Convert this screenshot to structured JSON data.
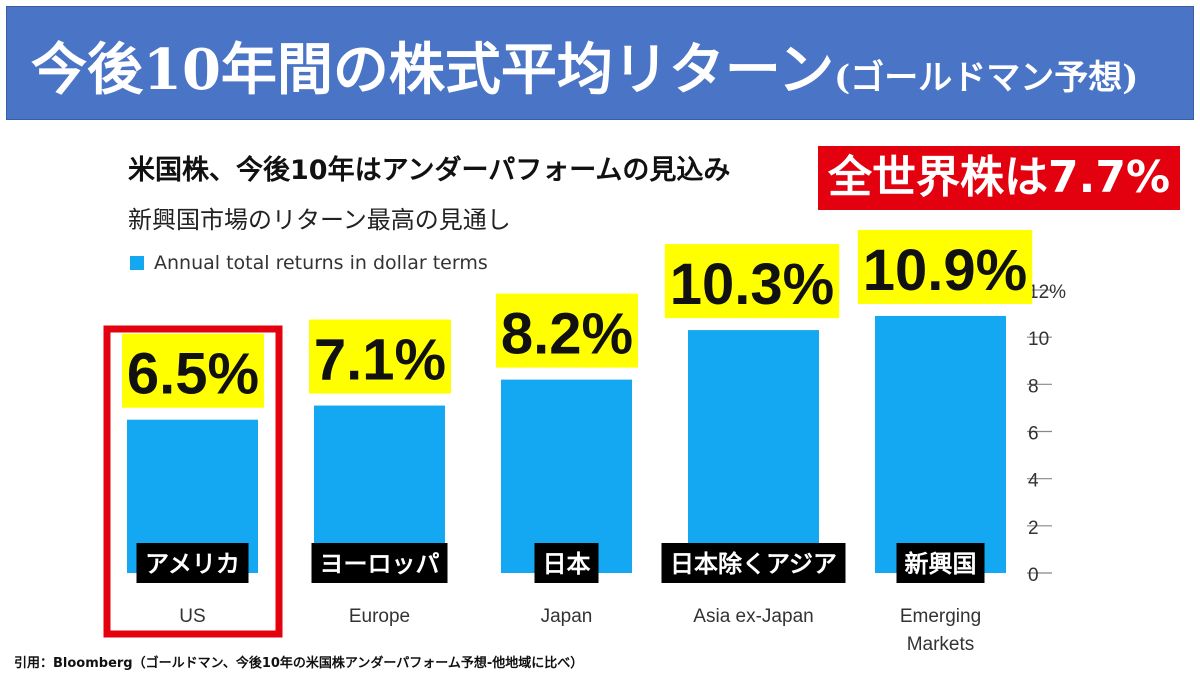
{
  "banner": {
    "title_main": "今後10年間の株式平均リターン",
    "title_sub": "(ゴールドマン予想)"
  },
  "chart_title": "米国株、今後10年はアンダーパフォームの見込み",
  "chart_subtitle": "新興国市場のリターン最高の見通し",
  "callout": "全世界株は7.7%",
  "citation": "引用：Bloomberg（ゴールドマン、今後10年の米国株アンダーパフォーム予想-他地域に比べ）",
  "chart_data": {
    "type": "bar",
    "categories": [
      "US",
      "Europe",
      "Japan",
      "Asia ex-Japan",
      "Emerging Markets"
    ],
    "category_labels_ja": [
      "アメリカ",
      "ヨーロッパ",
      "日本",
      "日本除くアジア",
      "新興国"
    ],
    "series": [
      {
        "name": "Annual total returns in dollar terms",
        "values": [
          6.5,
          7.1,
          8.2,
          10.3,
          10.9
        ]
      }
    ],
    "data_labels": [
      "6.5%",
      "7.1%",
      "8.2%",
      "10.3%",
      "10.9%"
    ],
    "ylim": [
      0,
      12
    ],
    "yticks": [
      "0",
      "2",
      "4",
      "6",
      "8",
      "10",
      "12%"
    ],
    "y_axis_side": "right",
    "highlighted_category": "US",
    "colors": {
      "bar": "#14a7f2",
      "label_bg": "#ffff00",
      "highlight_box": "#e3000f",
      "category_box": "#000000"
    }
  }
}
